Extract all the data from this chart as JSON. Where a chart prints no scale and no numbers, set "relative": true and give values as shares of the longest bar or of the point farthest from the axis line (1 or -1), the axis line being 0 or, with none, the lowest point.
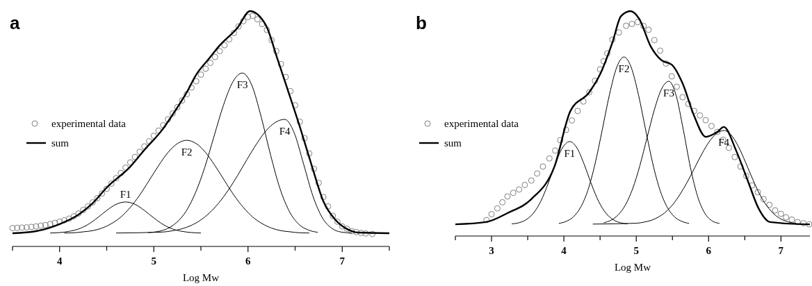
{
  "chart_data": [
    {
      "type": "line",
      "title": "a",
      "xlabel": "Log Mw",
      "relative": true,
      "xlim": [
        3.5,
        7.5
      ],
      "xticks": [
        {
          "value": 3.5,
          "label": null
        },
        4,
        {
          "value": 4.5,
          "label": null
        },
        5,
        {
          "value": 5.5,
          "label": null
        },
        6,
        {
          "value": 6.5,
          "label": null
        },
        7,
        {
          "value": 7.5,
          "label": null
        }
      ],
      "tick_labels": "x",
      "legend": "left",
      "grid": false,
      "series": [
        {
          "name": "experimental data",
          "type": "scatter",
          "marker": "circle",
          "color": "#808080",
          "x": [
            3.5,
            3.55,
            3.6,
            3.65,
            3.7,
            3.75,
            3.8,
            3.85,
            3.9,
            3.95,
            4.0,
            4.05,
            4.1,
            4.15,
            4.2,
            4.25,
            4.3,
            4.35,
            4.4,
            4.45,
            4.5,
            4.55,
            4.6,
            4.65,
            4.7,
            4.75,
            4.8,
            4.85,
            4.9,
            4.95,
            5.0,
            5.05,
            5.1,
            5.15,
            5.2,
            5.25,
            5.3,
            5.35,
            5.4,
            5.45,
            5.5,
            5.55,
            5.6,
            5.65,
            5.7,
            5.75,
            5.8,
            5.85,
            5.9,
            5.95,
            6.0,
            6.05,
            6.1,
            6.15,
            6.2,
            6.25,
            6.3,
            6.35,
            6.4,
            6.45,
            6.5,
            6.55,
            6.6,
            6.65,
            6.7,
            6.75,
            6.8,
            6.85,
            6.9,
            6.95,
            7.0,
            7.05,
            7.1,
            7.15,
            7.2,
            7.25,
            7.32
          ],
          "values": [
            0.078,
            0.079,
            0.08,
            0.081,
            0.083,
            0.085,
            0.088,
            0.091,
            0.095,
            0.1,
            0.105,
            0.111,
            0.118,
            0.128,
            0.14,
            0.155,
            0.17,
            0.187,
            0.205,
            0.225,
            0.245,
            0.267,
            0.29,
            0.312,
            0.335,
            0.357,
            0.38,
            0.402,
            0.425,
            0.447,
            0.47,
            0.492,
            0.515,
            0.54,
            0.565,
            0.592,
            0.62,
            0.647,
            0.675,
            0.702,
            0.73,
            0.755,
            0.78,
            0.805,
            0.83,
            0.855,
            0.88,
            0.907,
            0.935,
            0.957,
            0.975,
            0.98,
            0.965,
            0.945,
            0.92,
            0.877,
            0.83,
            0.775,
            0.72,
            0.66,
            0.6,
            0.53,
            0.46,
            0.395,
            0.33,
            0.27,
            0.21,
            0.17,
            0.13,
            0.105,
            0.085,
            0.075,
            0.065,
            0.061,
            0.057,
            0.055,
            0.053
          ]
        },
        {
          "name": "sum",
          "type": "line",
          "color": "#000000",
          "x": [
            3.5,
            3.75,
            4.0,
            4.2,
            4.35,
            4.5,
            4.75,
            4.9,
            5.09,
            5.2,
            5.35,
            5.45,
            5.59,
            5.69,
            5.89,
            6.02,
            6.19,
            6.31,
            6.43,
            6.56,
            6.68,
            6.8,
            6.93,
            7.05,
            7.17,
            7.5
          ],
          "values": [
            0.056,
            0.065,
            0.095,
            0.135,
            0.183,
            0.25,
            0.339,
            0.41,
            0.496,
            0.56,
            0.655,
            0.73,
            0.8,
            0.85,
            0.93,
            1.0,
            0.94,
            0.8,
            0.655,
            0.496,
            0.339,
            0.192,
            0.112,
            0.074,
            0.059,
            0.056
          ]
        },
        {
          "name": "F1",
          "type": "line",
          "color": "#000000",
          "x": [
            3.9,
            4.0,
            4.1,
            4.2,
            4.3,
            4.4,
            4.5,
            4.6,
            4.7,
            4.8,
            4.9,
            5.0,
            5.1,
            5.2,
            5.3,
            5.4,
            5.5
          ],
          "values": [
            0.057,
            0.059,
            0.064,
            0.074,
            0.093,
            0.121,
            0.153,
            0.179,
            0.189,
            0.179,
            0.153,
            0.121,
            0.093,
            0.074,
            0.064,
            0.059,
            0.057
          ]
        },
        {
          "name": "F2",
          "type": "line",
          "color": "#000000",
          "x": [
            4.05,
            4.15,
            4.25,
            4.35,
            4.45,
            4.55,
            4.65,
            4.75,
            4.85,
            4.95,
            5.05,
            5.15,
            5.25,
            5.35,
            5.45,
            5.55,
            5.65,
            5.75,
            5.85,
            5.95,
            6.05,
            6.15,
            6.25,
            6.35,
            6.45,
            6.55,
            6.65
          ],
          "values": [
            0.057,
            0.058,
            0.062,
            0.067,
            0.078,
            0.097,
            0.125,
            0.166,
            0.218,
            0.28,
            0.343,
            0.399,
            0.437,
            0.451,
            0.437,
            0.399,
            0.343,
            0.28,
            0.218,
            0.166,
            0.125,
            0.097,
            0.078,
            0.067,
            0.062,
            0.058,
            0.057
          ]
        },
        {
          "name": "F3",
          "type": "line",
          "color": "#000000",
          "x": [
            4.94,
            5.04,
            5.14,
            5.24,
            5.34,
            5.44,
            5.54,
            5.64,
            5.74,
            5.84,
            5.94,
            6.04,
            6.14,
            6.24,
            6.34,
            6.44,
            6.54,
            6.64,
            6.74
          ],
          "values": [
            0.059,
            0.063,
            0.075,
            0.101,
            0.148,
            0.226,
            0.335,
            0.469,
            0.601,
            0.7,
            0.737,
            0.685,
            0.55,
            0.388,
            0.245,
            0.148,
            0.094,
            0.07,
            0.06
          ]
        },
        {
          "name": "F4",
          "type": "line",
          "color": "#000000",
          "x": [
            4.6,
            5.09,
            5.19,
            5.29,
            5.39,
            5.49,
            5.59,
            5.69,
            5.79,
            5.89,
            5.99,
            6.09,
            6.19,
            6.29,
            6.39,
            6.49,
            6.59,
            6.69,
            6.79,
            6.89,
            6.99,
            7.1
          ],
          "values": [
            0.057,
            0.061,
            0.066,
            0.074,
            0.088,
            0.11,
            0.142,
            0.185,
            0.239,
            0.302,
            0.37,
            0.435,
            0.491,
            0.527,
            0.54,
            0.483,
            0.35,
            0.213,
            0.121,
            0.077,
            0.061,
            0.057
          ]
        }
      ]
    },
    {
      "type": "line",
      "title": "b",
      "xlabel": "Log Mw",
      "relative": true,
      "xlim": [
        2.5,
        7.4
      ],
      "xticks": [
        {
          "value": 2.5,
          "label": null
        },
        3,
        {
          "value": 3.5,
          "label": null
        },
        4,
        {
          "value": 4.5,
          "label": null
        },
        5,
        {
          "value": 5.5,
          "label": null
        },
        6,
        {
          "value": 6.5,
          "label": null
        },
        7
      ],
      "tick_labels": "x",
      "legend": "left",
      "grid": false,
      "series": [
        {
          "name": "experimental data",
          "type": "scatter",
          "marker": "circle",
          "color": "#808080",
          "x": [
            2.93,
            3.0,
            3.08,
            3.15,
            3.22,
            3.3,
            3.38,
            3.46,
            3.55,
            3.63,
            3.71,
            3.8,
            3.88,
            3.95,
            4.03,
            4.11,
            4.19,
            4.27,
            4.35,
            4.43,
            4.5,
            4.55,
            4.6,
            4.67,
            4.76,
            4.86,
            4.94,
            5.02,
            5.1,
            5.17,
            5.25,
            5.33,
            5.41,
            5.49,
            5.56,
            5.64,
            5.72,
            5.8,
            5.88,
            5.96,
            6.04,
            6.12,
            6.2,
            6.28,
            6.36,
            6.44,
            6.52,
            6.6,
            6.68,
            6.76,
            6.84,
            6.92,
            7.0,
            7.07,
            7.15,
            7.23,
            7.31,
            7.39
          ],
          "values": [
            0.071,
            0.097,
            0.123,
            0.15,
            0.176,
            0.192,
            0.207,
            0.227,
            0.247,
            0.278,
            0.309,
            0.345,
            0.38,
            0.426,
            0.472,
            0.514,
            0.556,
            0.598,
            0.639,
            0.69,
            0.741,
            0.777,
            0.812,
            0.873,
            0.905,
            0.935,
            0.943,
            0.951,
            0.934,
            0.917,
            0.871,
            0.824,
            0.767,
            0.71,
            0.664,
            0.617,
            0.587,
            0.556,
            0.536,
            0.515,
            0.489,
            0.463,
            0.428,
            0.392,
            0.351,
            0.309,
            0.267,
            0.225,
            0.195,
            0.164,
            0.139,
            0.114,
            0.099,
            0.083,
            0.073,
            0.062,
            0.057,
            0.052
          ]
        },
        {
          "name": "sum",
          "type": "line",
          "color": "#000000",
          "x": [
            2.5,
            2.92,
            3.22,
            3.55,
            3.87,
            4.09,
            4.35,
            4.5,
            4.67,
            4.79,
            4.92,
            5.04,
            5.2,
            5.35,
            5.49,
            5.64,
            5.8,
            5.96,
            6.12,
            6.21,
            6.38,
            6.54,
            6.69,
            6.85,
            7.33,
            7.4
          ],
          "values": [
            0.052,
            0.062,
            0.102,
            0.164,
            0.309,
            0.556,
            0.639,
            0.719,
            0.86,
            0.978,
            1.0,
            0.966,
            0.843,
            0.781,
            0.762,
            0.679,
            0.534,
            0.441,
            0.463,
            0.485,
            0.38,
            0.247,
            0.123,
            0.062,
            0.052,
            0.052
          ]
        },
        {
          "name": "F1",
          "type": "line",
          "color": "#000000",
          "x": [
            3.28,
            3.38,
            3.48,
            3.58,
            3.68,
            3.78,
            3.88,
            3.98,
            4.08,
            4.18,
            4.28,
            4.38,
            4.48,
            4.58,
            4.68,
            4.78,
            4.88
          ],
          "values": [
            0.054,
            0.059,
            0.073,
            0.102,
            0.154,
            0.231,
            0.319,
            0.392,
            0.42,
            0.392,
            0.319,
            0.231,
            0.154,
            0.102,
            0.073,
            0.059,
            0.054
          ]
        },
        {
          "name": "F2",
          "type": "line",
          "color": "#000000",
          "x": [
            3.93,
            4.03,
            4.13,
            4.23,
            4.33,
            4.43,
            4.53,
            4.63,
            4.73,
            4.83,
            4.93,
            5.03,
            5.13,
            5.23,
            5.33,
            5.43,
            5.53,
            5.63,
            5.73
          ],
          "values": [
            0.056,
            0.065,
            0.085,
            0.127,
            0.202,
            0.32,
            0.472,
            0.629,
            0.75,
            0.796,
            0.75,
            0.629,
            0.472,
            0.32,
            0.202,
            0.127,
            0.085,
            0.065,
            0.056
          ]
        },
        {
          "name": "F3",
          "type": "line",
          "color": "#000000",
          "x": [
            4.55,
            4.65,
            4.75,
            4.85,
            4.95,
            5.05,
            5.15,
            5.25,
            5.35,
            5.45,
            5.55,
            5.65,
            5.75,
            5.85,
            5.95,
            6.05,
            6.15
          ],
          "values": [
            0.059,
            0.07,
            0.094,
            0.138,
            0.21,
            0.313,
            0.438,
            0.561,
            0.654,
            0.688,
            0.626,
            0.473,
            0.303,
            0.174,
            0.1,
            0.067,
            0.056
          ]
        },
        {
          "name": "F4",
          "type": "line",
          "color": "#000000",
          "x": [
            4.4,
            5.01,
            5.11,
            5.21,
            5.31,
            5.41,
            5.51,
            5.61,
            5.71,
            5.81,
            5.91,
            6.01,
            6.11,
            6.21,
            6.31,
            6.41,
            6.51,
            6.61,
            6.71,
            6.81,
            6.91,
            7.01,
            7.11,
            7.21
          ],
          "values": [
            0.053,
            0.057,
            0.062,
            0.07,
            0.085,
            0.108,
            0.142,
            0.188,
            0.243,
            0.305,
            0.367,
            0.42,
            0.456,
            0.469,
            0.45,
            0.399,
            0.328,
            0.252,
            0.183,
            0.132,
            0.096,
            0.074,
            0.062,
            0.056
          ]
        }
      ]
    }
  ]
}
